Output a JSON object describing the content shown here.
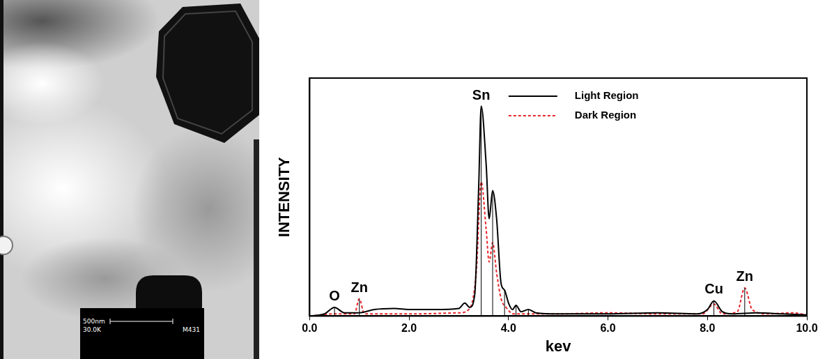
{
  "micrograph": {
    "scale_bar": "500nm",
    "magnification": "30.0K",
    "label": "M431"
  },
  "chart_data": {
    "type": "line",
    "x_label": "kev",
    "y_label": "INTENSITY",
    "xlim": [
      0,
      10
    ],
    "xticks": [
      {
        "value": 0,
        "label": "0.0"
      },
      {
        "value": 2,
        "label": "2.0"
      },
      {
        "value": 4,
        "label": "4.0"
      },
      {
        "value": 6,
        "label": "6.0"
      },
      {
        "value": 8,
        "label": "8.0"
      },
      {
        "value": 10,
        "label": "10.0"
      }
    ],
    "ylim": [
      0,
      110
    ],
    "yticks": [],
    "tick_labels": "x",
    "grid": false,
    "legend": "top",
    "series": [
      {
        "name": "Light Region",
        "color": "#000000",
        "line_style": "solid",
        "x": [
          0,
          0.3,
          0.5,
          0.7,
          1.0,
          1.3,
          1.7,
          2.0,
          2.5,
          3.0,
          3.12,
          3.22,
          3.32,
          3.4,
          3.45,
          3.55,
          3.61,
          3.68,
          3.76,
          3.85,
          3.92,
          4.0,
          4.08,
          4.15,
          4.25,
          4.4,
          4.55,
          5.0,
          6.0,
          7.0,
          7.8,
          8.0,
          8.13,
          8.3,
          8.5,
          9.0,
          9.5,
          10.0
        ],
        "values": [
          0,
          1,
          4,
          1.5,
          1.5,
          3,
          3.5,
          3,
          3,
          3.5,
          6,
          4,
          10,
          60,
          97,
          70,
          45,
          58,
          45,
          15,
          12,
          6,
          3,
          5,
          2,
          3,
          1.5,
          1,
          1,
          1.5,
          1,
          3,
          7,
          2,
          1,
          1.5,
          1,
          0.5
        ]
      },
      {
        "name": "Dark Region",
        "color": "#e8262b",
        "line_style": "dotted",
        "x": [
          0,
          0.5,
          0.9,
          1.0,
          1.1,
          1.5,
          2.0,
          3.0,
          3.2,
          3.35,
          3.45,
          3.55,
          3.61,
          3.68,
          3.76,
          3.85,
          3.95,
          4.1,
          5.0,
          6.0,
          7.0,
          7.9,
          8.13,
          8.3,
          8.6,
          8.75,
          8.9,
          9.2,
          9.7,
          10.0
        ],
        "values": [
          0,
          1,
          1,
          8,
          1,
          1,
          1,
          1.5,
          3,
          20,
          62,
          40,
          25,
          34,
          20,
          8,
          4,
          1,
          1,
          1.5,
          1,
          1,
          5.5,
          1,
          2,
          13,
          3,
          1,
          1.5,
          0.5
        ]
      }
    ],
    "peak_lines": [
      {
        "x": 0.5,
        "y": 4
      },
      {
        "x": 1.0,
        "y": 8
      },
      {
        "x": 3.45,
        "y": 96
      },
      {
        "x": 3.68,
        "y": 58
      },
      {
        "x": 3.92,
        "y": 12
      },
      {
        "x": 4.15,
        "y": 5
      },
      {
        "x": 4.4,
        "y": 3
      },
      {
        "x": 8.13,
        "y": 7
      },
      {
        "x": 8.75,
        "y": 13
      }
    ],
    "annotations": [
      {
        "text": "O",
        "x": 0.5,
        "y": 5
      },
      {
        "text": "Zn",
        "x": 1.0,
        "y": 9
      },
      {
        "text": "Sn",
        "x": 3.45,
        "y": 98
      },
      {
        "text": "Cu",
        "x": 8.13,
        "y": 8.5
      },
      {
        "text": "Zn",
        "x": 8.75,
        "y": 14
      }
    ]
  }
}
